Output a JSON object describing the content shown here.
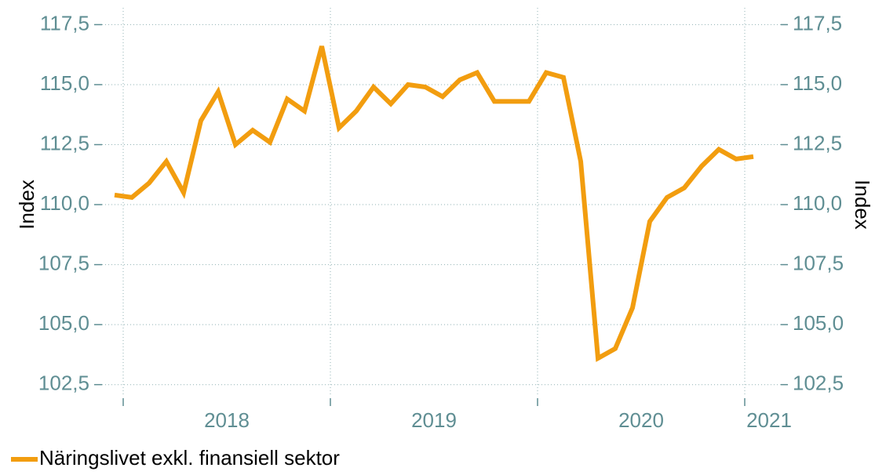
{
  "chart_data": {
    "type": "line",
    "ylabel": "Index",
    "y2label": "Index",
    "categories": [
      null,
      null,
      null,
      null,
      null,
      null,
      null,
      null,
      null,
      null,
      null,
      null,
      null,
      null,
      null,
      null,
      null,
      null,
      null,
      null,
      null,
      null,
      null,
      null,
      null,
      null,
      null,
      null,
      null,
      null,
      null,
      null,
      null,
      null,
      null,
      null,
      null,
      null
    ],
    "xtick_labels": [
      "2018",
      "2019",
      "2020",
      "2021"
    ],
    "series": [
      {
        "name": "Näringslivet exkl. finansiell sektor",
        "color": "#f29d0f",
        "values": [
          110.4,
          110.3,
          110.9,
          111.8,
          110.5,
          113.5,
          114.7,
          112.5,
          113.1,
          112.6,
          114.4,
          113.9,
          116.6,
          113.2,
          113.9,
          114.9,
          114.2,
          115.0,
          114.9,
          114.5,
          115.2,
          115.5,
          114.3,
          114.3,
          114.3,
          115.5,
          115.3,
          111.8,
          103.6,
          104.0,
          105.7,
          109.3,
          110.3,
          110.7,
          111.6,
          112.3,
          111.9,
          112.0
        ]
      }
    ],
    "ylim": [
      102.0,
      118.2
    ],
    "yticks": [
      {
        "value": 102.5,
        "label": "102,5"
      },
      {
        "value": 105,
        "label": "105,0"
      },
      {
        "value": 107.5,
        "label": "107,5"
      },
      {
        "value": 110,
        "label": "110,0"
      },
      {
        "value": 112.5,
        "label": "112,5"
      },
      {
        "value": 115,
        "label": "115,0"
      },
      {
        "value": 117.5,
        "label": "117,5"
      }
    ],
    "y2lim": [
      102.0,
      118.2
    ],
    "y2ticks": [
      {
        "value": 102.5,
        "label": "102,5"
      },
      {
        "value": 105,
        "label": "105,0"
      },
      {
        "value": 107.5,
        "label": "107,5"
      },
      {
        "value": 110,
        "label": "110,0"
      },
      {
        "value": 112.5,
        "label": "112,5"
      },
      {
        "value": 115,
        "label": "115,0"
      },
      {
        "value": 117.5,
        "label": "117,5"
      }
    ],
    "grid": true
  }
}
